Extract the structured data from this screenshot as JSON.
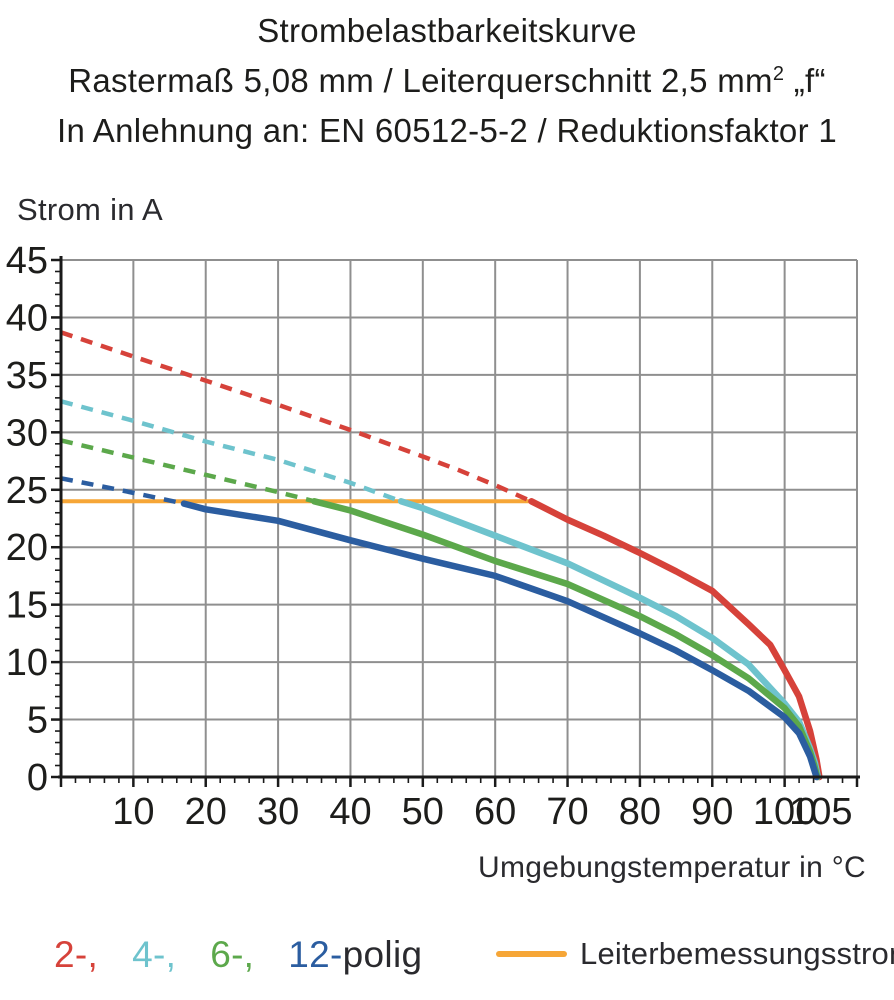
{
  "title": {
    "line1": "Strombelastbarkeitskurve",
    "line2_main": "Rastermaß 5,08 mm / Leiterquerschnitt 2,5 mm",
    "line2_sup": "2",
    "line2_suffix": " „f“",
    "line3": "In Anlehnung an: EN 60512-5-2 / Reduktionsfaktor 1"
  },
  "axes": {
    "y_title": "Strom in A",
    "x_title": "Umgebungstemperatur in °C"
  },
  "legend": {
    "items": [
      {
        "label": "2-,",
        "color": "#d6423a",
        "series": "2-polig"
      },
      {
        "label": "4-,",
        "color": "#6ec3cd",
        "series": "4-polig"
      },
      {
        "label": "6-,",
        "color": "#5ca84b",
        "series": "6-polig"
      },
      {
        "label": "12-",
        "color": "#2b5da0",
        "series": "12-polig"
      }
    ],
    "suffix": "polig",
    "rated_current_label": "Leiterbemessungsstrom",
    "rated_current_color": "#f6a637"
  },
  "chart_data": {
    "type": "line",
    "title": "Strombelastbarkeitskurve",
    "xlabel": "Umgebungstemperatur in °C",
    "ylabel": "Strom in A",
    "xlim": [
      0,
      110
    ],
    "ylim": [
      0,
      45
    ],
    "x_grid_step": 10,
    "y_grid_step": 5,
    "x_minor_step": 2,
    "y_minor_step": 1,
    "x_tick_labels": [
      10,
      20,
      30,
      40,
      50,
      60,
      70,
      80,
      90,
      100,
      105
    ],
    "y_tick_labels": [
      0,
      5,
      10,
      15,
      20,
      25,
      30,
      35,
      40,
      45
    ],
    "grid": true,
    "grid_color": "#8f8f8f",
    "axis_color": "#1a1a1a",
    "text_color": "#1d1d1b",
    "rated_current": {
      "label": "Leiterbemessungsstrom",
      "value": 24,
      "x_start": 0,
      "x_end": 65,
      "color": "#f6a637"
    },
    "series": [
      {
        "name": "2-polig",
        "color": "#d6423a",
        "dashed_points": [
          [
            0,
            38.7
          ],
          [
            10,
            36.6
          ],
          [
            20,
            34.5
          ],
          [
            30,
            32.4
          ],
          [
            40,
            30.2
          ],
          [
            50,
            27.9
          ],
          [
            55,
            26.7
          ],
          [
            60,
            25.4
          ],
          [
            65,
            24.0
          ]
        ],
        "solid_points": [
          [
            65,
            24.0
          ],
          [
            70,
            22.4
          ],
          [
            75,
            21.0
          ],
          [
            80,
            19.5
          ],
          [
            85,
            17.9
          ],
          [
            90,
            16.2
          ],
          [
            95,
            13.3
          ],
          [
            98,
            11.5
          ],
          [
            100,
            9.3
          ],
          [
            102,
            7.0
          ],
          [
            103.5,
            4.0
          ],
          [
            104.4,
            1.5
          ],
          [
            104.8,
            0
          ]
        ]
      },
      {
        "name": "4-polig",
        "color": "#6ec3cd",
        "dashed_points": [
          [
            0,
            32.7
          ],
          [
            10,
            31.0
          ],
          [
            20,
            29.2
          ],
          [
            30,
            27.6
          ],
          [
            40,
            25.6
          ],
          [
            47,
            24.0
          ]
        ],
        "solid_points": [
          [
            47,
            24.0
          ],
          [
            50,
            23.4
          ],
          [
            60,
            21.0
          ],
          [
            70,
            18.6
          ],
          [
            80,
            15.6
          ],
          [
            85,
            14.0
          ],
          [
            90,
            12.1
          ],
          [
            95,
            9.8
          ],
          [
            100,
            6.4
          ],
          [
            102,
            4.8
          ],
          [
            103.5,
            2.5
          ],
          [
            104.2,
            1.2
          ],
          [
            104.6,
            0
          ]
        ]
      },
      {
        "name": "6-polig",
        "color": "#5ca84b",
        "dashed_points": [
          [
            0,
            29.3
          ],
          [
            10,
            27.8
          ],
          [
            20,
            26.3
          ],
          [
            30,
            24.8
          ],
          [
            35,
            24.0
          ]
        ],
        "solid_points": [
          [
            35,
            24.0
          ],
          [
            40,
            23.2
          ],
          [
            50,
            21.1
          ],
          [
            60,
            18.8
          ],
          [
            70,
            16.8
          ],
          [
            80,
            14.0
          ],
          [
            85,
            12.4
          ],
          [
            90,
            10.6
          ],
          [
            95,
            8.6
          ],
          [
            100,
            6.0
          ],
          [
            102,
            4.4
          ],
          [
            103.5,
            2.2
          ],
          [
            104.1,
            1.0
          ],
          [
            104.5,
            0
          ]
        ]
      },
      {
        "name": "12-polig",
        "color": "#2b5da0",
        "dashed_points": [
          [
            0,
            26.0
          ],
          [
            8,
            25.0
          ],
          [
            17,
            23.8
          ]
        ],
        "solid_points": [
          [
            17,
            23.8
          ],
          [
            20,
            23.3
          ],
          [
            30,
            22.3
          ],
          [
            40,
            20.6
          ],
          [
            50,
            19.0
          ],
          [
            60,
            17.5
          ],
          [
            70,
            15.3
          ],
          [
            80,
            12.5
          ],
          [
            85,
            11.0
          ],
          [
            90,
            9.3
          ],
          [
            95,
            7.5
          ],
          [
            100,
            5.2
          ],
          [
            102,
            3.8
          ],
          [
            103.5,
            1.8
          ],
          [
            104.4,
            0
          ]
        ]
      }
    ]
  }
}
